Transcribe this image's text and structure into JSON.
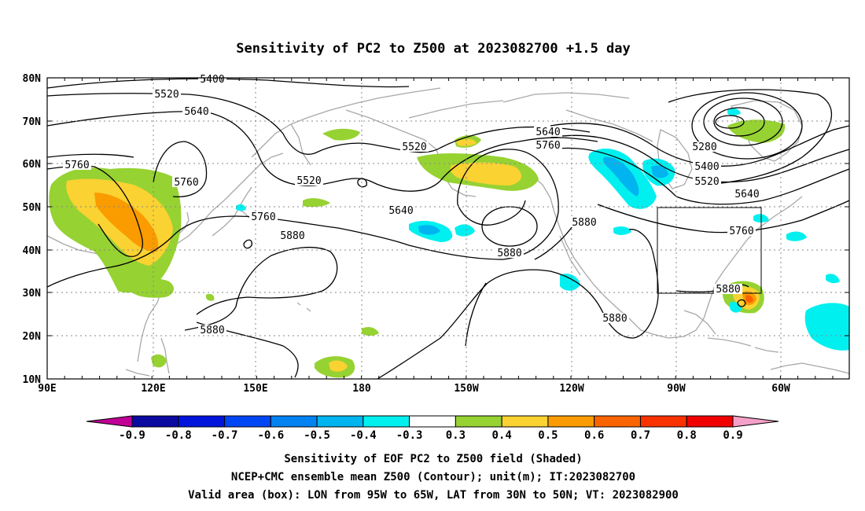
{
  "title": "Sensitivity of PC2 to Z500 at 2023082700 +1.5 day",
  "map": {
    "lat_labels": [
      "80N",
      "70N",
      "60N",
      "50N",
      "40N",
      "30N",
      "20N",
      "10N"
    ],
    "lon_labels": [
      "90E",
      "120E",
      "150E",
      "180",
      "150W",
      "120W",
      "90W",
      "60W"
    ],
    "contour_labels": [
      "5400",
      "5520",
      "5640",
      "5760",
      "5760",
      "5520",
      "5520",
      "5640",
      "5640",
      "5760",
      "5760",
      "5880",
      "5880",
      "5880",
      "5880",
      "5880",
      "5880",
      "5760",
      "5280",
      "5400",
      "5520",
      "5640",
      "5760"
    ],
    "valid_box": {
      "lon_min": "95W",
      "lon_max": "65W",
      "lat_min": "30N",
      "lat_max": "50N"
    }
  },
  "colorbar": {
    "ticks": [
      "-0.9",
      "-0.8",
      "-0.7",
      "-0.6",
      "-0.5",
      "-0.4",
      "-0.3",
      "0.3",
      "0.4",
      "0.5",
      "0.6",
      "0.7",
      "0.8",
      "0.9"
    ],
    "colors": [
      "#c00096",
      "#0a0aa0",
      "#0014dc",
      "#0046f5",
      "#0082f0",
      "#00b4f0",
      "#00f0f0",
      "#ffffff",
      "#96d232",
      "#fad232",
      "#fa9b00",
      "#fa6400",
      "#fa3200",
      "#f00000",
      "#f5a0c8"
    ]
  },
  "captions": [
    "Sensitivity of EOF PC2 to Z500 field (Shaded)",
    "NCEP+CMC ensemble mean Z500 (Contour); unit(m); IT:2023082700",
    "Valid area (box): LON from 95W to 65W, LAT from 30N to 50N; VT: 2023082900"
  ]
}
